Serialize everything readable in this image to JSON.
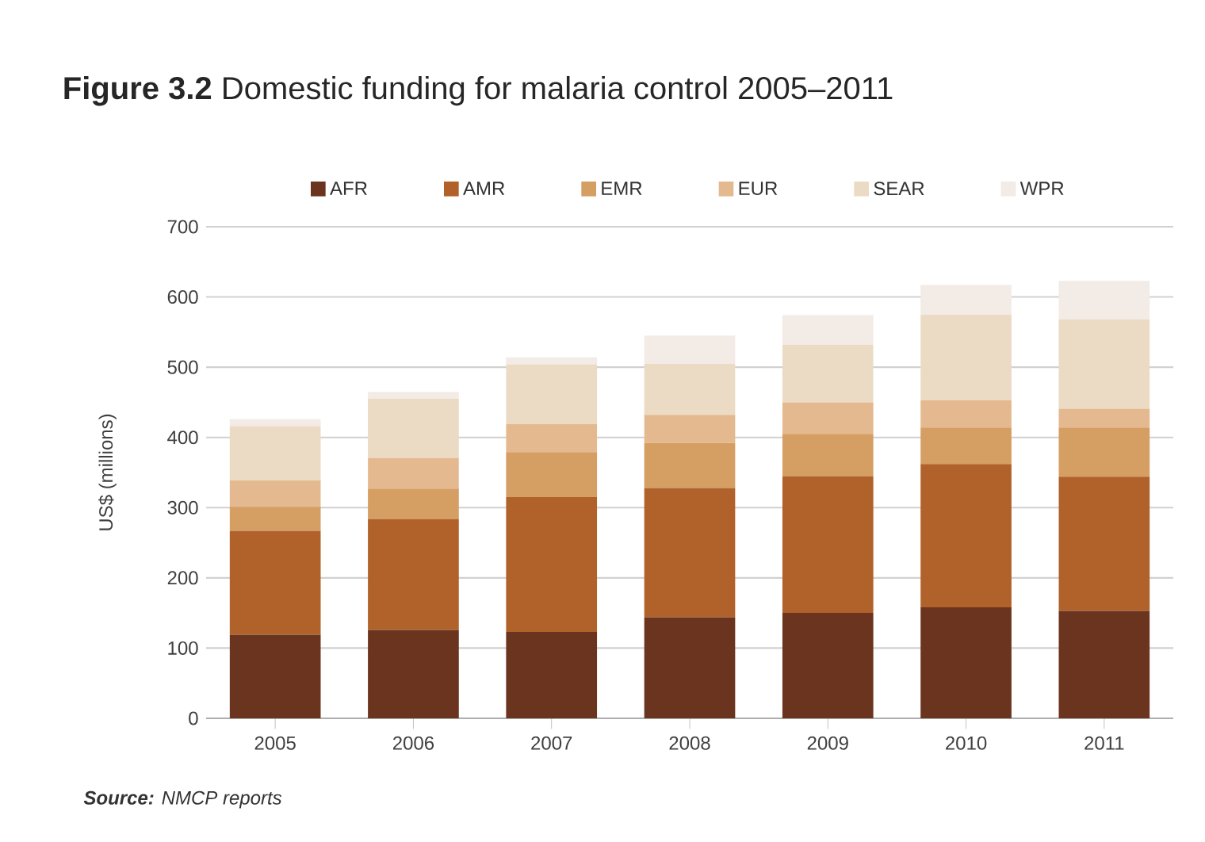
{
  "chart_data": {
    "type": "bar",
    "stacked": true,
    "title": "**Figure 3.2** Domestic funding for malaria control 2005–2011",
    "ylabel": "US$ (millions)",
    "categories": [
      "2005",
      "2006",
      "2007",
      "2008",
      "2009",
      "2010",
      "2011"
    ],
    "series": [
      {
        "name": "AFR",
        "color": "#6b341e",
        "values": [
          119,
          126,
          123,
          144,
          150,
          158,
          153
        ]
      },
      {
        "name": "AMR",
        "color": "#b1622a",
        "values": [
          148,
          158,
          192,
          184,
          195,
          204,
          191
        ]
      },
      {
        "name": "EMR",
        "color": "#d59e63",
        "values": [
          34,
          43,
          64,
          64,
          60,
          52,
          70
        ]
      },
      {
        "name": "EUR",
        "color": "#e5b98f",
        "values": [
          38,
          44,
          40,
          40,
          45,
          39,
          27
        ]
      },
      {
        "name": "SEAR",
        "color": "#ecdbc4",
        "values": [
          77,
          84,
          85,
          73,
          82,
          122,
          127
        ]
      },
      {
        "name": "WPR",
        "color": "#f3ebe5",
        "values": [
          10,
          10,
          10,
          40,
          42,
          42,
          55
        ]
      }
    ],
    "ylim": [
      0,
      700
    ],
    "yticks": [
      0,
      100,
      200,
      300,
      400,
      500,
      600,
      700
    ],
    "grid": "y",
    "legend": "top",
    "annotations": [
      "**Source:** NMCP reports"
    ]
  }
}
